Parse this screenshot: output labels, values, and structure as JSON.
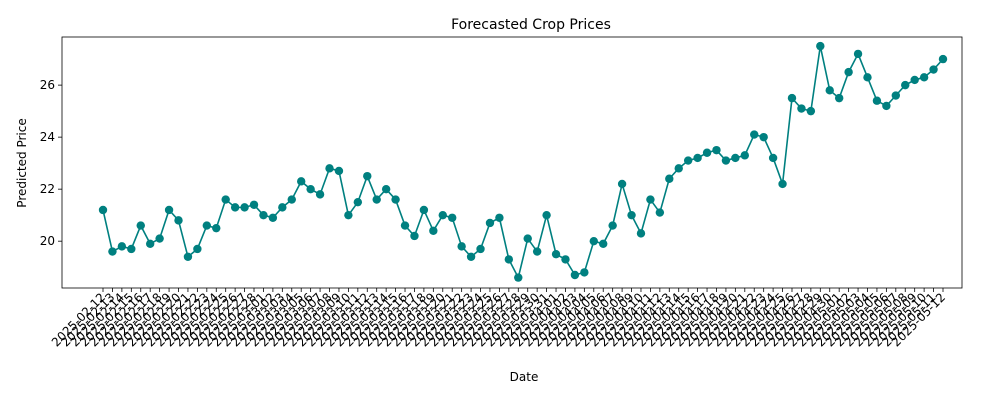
{
  "chart_data": {
    "type": "line",
    "title": "Forecasted Crop Prices",
    "xlabel": "Date",
    "ylabel": "Predicted Price",
    "ylim": [
      18.2,
      27.85
    ],
    "yticks": [
      20,
      22,
      24,
      26
    ],
    "grid": false,
    "legend": "none",
    "series_color": "#008080",
    "categories": [
      "2025-02-12",
      "2025-02-13",
      "2025-02-14",
      "2025-02-15",
      "2025-02-16",
      "2025-02-17",
      "2025-02-18",
      "2025-02-19",
      "2025-02-20",
      "2025-02-21",
      "2025-02-22",
      "2025-02-23",
      "2025-02-24",
      "2025-02-25",
      "2025-02-26",
      "2025-02-27",
      "2025-02-28",
      "2025-03-01",
      "2025-03-02",
      "2025-03-03",
      "2025-03-04",
      "2025-03-05",
      "2025-03-06",
      "2025-03-07",
      "2025-03-08",
      "2025-03-09",
      "2025-03-10",
      "2025-03-11",
      "2025-03-12",
      "2025-03-13",
      "2025-03-14",
      "2025-03-15",
      "2025-03-16",
      "2025-03-17",
      "2025-03-18",
      "2025-03-19",
      "2025-03-20",
      "2025-03-21",
      "2025-03-22",
      "2025-03-23",
      "2025-03-24",
      "2025-03-25",
      "2025-03-26",
      "2025-03-27",
      "2025-03-28",
      "2025-03-29",
      "2025-03-30",
      "2025-03-31",
      "2025-04-01",
      "2025-04-02",
      "2025-04-03",
      "2025-04-04",
      "2025-04-05",
      "2025-04-06",
      "2025-04-07",
      "2025-04-08",
      "2025-04-09",
      "2025-04-10",
      "2025-04-11",
      "2025-04-12",
      "2025-04-13",
      "2025-04-14",
      "2025-04-15",
      "2025-04-16",
      "2025-04-17",
      "2025-04-18",
      "2025-04-19",
      "2025-04-20",
      "2025-04-21",
      "2025-04-22",
      "2025-04-23",
      "2025-04-24",
      "2025-04-25",
      "2025-04-26",
      "2025-04-27",
      "2025-04-28",
      "2025-04-29",
      "2025-04-30",
      "2025-05-01",
      "2025-05-02",
      "2025-05-03",
      "2025-05-04",
      "2025-05-05",
      "2025-05-06",
      "2025-05-07",
      "2025-05-08",
      "2025-05-09",
      "2025-05-10",
      "2025-05-11",
      "2025-05-12"
    ],
    "series": [
      {
        "values": [
          21.2,
          19.6,
          19.8,
          19.7,
          20.6,
          19.9,
          20.1,
          21.2,
          20.8,
          19.4,
          19.7,
          20.6,
          20.5,
          21.6,
          21.3,
          21.3,
          21.4,
          21.0,
          20.9,
          21.3,
          21.6,
          22.3,
          22.0,
          21.8,
          22.8,
          22.7,
          21.0,
          21.5,
          22.5,
          21.6,
          22.0,
          21.6,
          20.6,
          20.2,
          21.2,
          20.4,
          21.0,
          20.9,
          19.8,
          19.4,
          19.7,
          20.7,
          20.9,
          19.3,
          18.6,
          20.1,
          19.6,
          21.0,
          19.5,
          19.3,
          18.7,
          18.8,
          20.0,
          19.9,
          20.6,
          22.2,
          21.0,
          20.3,
          21.6,
          21.1,
          22.4,
          22.8,
          23.1,
          23.2,
          23.4,
          23.5,
          23.1,
          23.2,
          23.3,
          24.1,
          24.0,
          23.2,
          22.2,
          25.5,
          25.1,
          25.0,
          27.5,
          25.8,
          25.5,
          26.5,
          27.2,
          26.3,
          25.4,
          25.2,
          25.6,
          26.0,
          26.2,
          26.3,
          26.6,
          27.0
        ]
      }
    ]
  }
}
